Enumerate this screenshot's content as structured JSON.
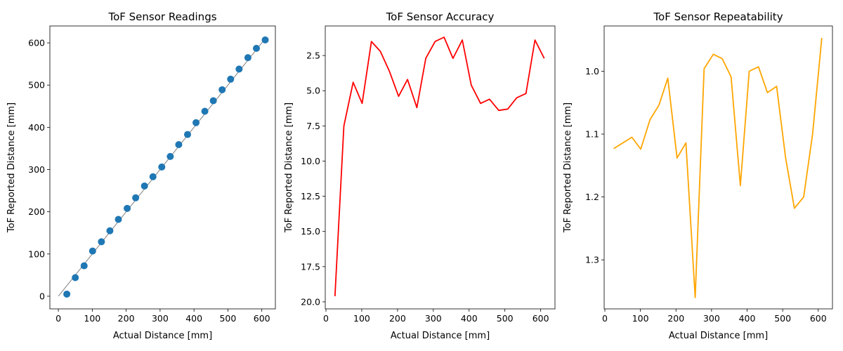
{
  "chart_data": [
    {
      "type": "scatter",
      "title": "ToF Sensor Readings",
      "xlabel": "Actual Distance [mm]",
      "ylabel": "ToF Reported Distance [mm]",
      "xlim": [
        -25,
        640
      ],
      "ylim": [
        -30,
        640
      ],
      "yinvert": false,
      "xticks": [
        0,
        100,
        200,
        300,
        400,
        500,
        600
      ],
      "yticks": [
        0,
        100,
        200,
        300,
        400,
        500,
        600
      ],
      "ytick_labels": [
        "0",
        "100",
        "200",
        "300",
        "400",
        "500",
        "600"
      ],
      "reference_line": {
        "x": [
          0,
          610
        ],
        "y": [
          0,
          610
        ],
        "color": "#808080"
      },
      "series": [
        {
          "color": "#1f77b4",
          "x": [
            25,
            50,
            76,
            101,
            127,
            152,
            177,
            203,
            228,
            254,
            279,
            305,
            330,
            355,
            381,
            406,
            432,
            457,
            483,
            508,
            533,
            559,
            584,
            610
          ],
          "y": [
            5,
            44,
            72,
            107,
            129,
            155,
            182,
            208,
            233,
            261,
            283,
            306,
            331,
            359,
            383,
            411,
            438,
            463,
            489,
            514,
            538,
            565,
            587,
            607
          ]
        }
      ]
    },
    {
      "type": "line",
      "title": "ToF Sensor Accuracy",
      "xlabel": "Actual Distance [mm]",
      "ylabel": "ToF Reported Distance [mm]",
      "xlim": [
        -2,
        640
      ],
      "ylim": [
        0.4,
        20.5
      ],
      "yinvert": true,
      "xticks": [
        0,
        100,
        200,
        300,
        400,
        500,
        600
      ],
      "yticks": [
        2.5,
        5,
        7.5,
        10,
        12.5,
        15,
        17.5,
        20
      ],
      "ytick_labels": [
        "2.5",
        "5.0",
        "7.5",
        "10.0",
        "12.5",
        "15.0",
        "17.5",
        "20.0"
      ],
      "series": [
        {
          "color": "#ff0000",
          "x": [
            25,
            50,
            76,
            101,
            127,
            152,
            177,
            203,
            228,
            254,
            279,
            305,
            330,
            355,
            381,
            406,
            432,
            457,
            483,
            508,
            533,
            559,
            584,
            610
          ],
          "y": [
            19.6,
            7.5,
            4.4,
            5.9,
            1.5,
            2.2,
            3.6,
            5.4,
            4.2,
            6.2,
            2.7,
            1.5,
            1.2,
            2.7,
            1.4,
            4.6,
            5.9,
            5.6,
            6.4,
            6.3,
            5.5,
            5.2,
            1.4,
            2.7
          ]
        }
      ]
    },
    {
      "type": "line",
      "title": "ToF Sensor Repeatability",
      "xlabel": "Actual Distance [mm]",
      "ylabel": "ToF Reported Distance [mm]",
      "xlim": [
        -2,
        640
      ],
      "ylim": [
        0.928,
        1.378
      ],
      "yinvert": true,
      "xticks": [
        0,
        100,
        200,
        300,
        400,
        500,
        600
      ],
      "yticks": [
        1.0,
        1.1,
        1.2,
        1.3
      ],
      "ytick_labels": [
        "1.0",
        "1.1",
        "1.2",
        "1.3"
      ],
      "series": [
        {
          "color": "#ffa500",
          "x": [
            25,
            76,
            101,
            127,
            152,
            177,
            203,
            228,
            254,
            279,
            305,
            330,
            355,
            381,
            406,
            432,
            457,
            483,
            508,
            533,
            559,
            584,
            610
          ],
          "y": [
            1.123,
            1.105,
            1.124,
            1.077,
            1.054,
            1.011,
            1.138,
            1.114,
            1.36,
            0.996,
            0.973,
            0.98,
            1.009,
            1.182,
            1.0,
            0.993,
            1.034,
            1.024,
            1.137,
            1.218,
            1.2,
            1.1,
            0.947
          ]
        }
      ]
    }
  ]
}
